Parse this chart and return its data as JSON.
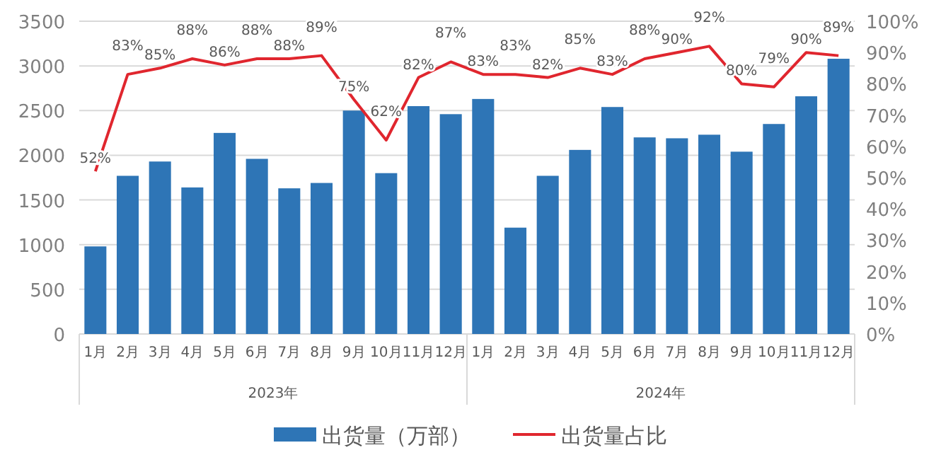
{
  "chart_data": {
    "type": "bar",
    "categories": [
      "1月",
      "2月",
      "3月",
      "4月",
      "5月",
      "6月",
      "7月",
      "8月",
      "9月",
      "10月",
      "11月",
      "12月",
      "1月",
      "2月",
      "3月",
      "4月",
      "5月",
      "6月",
      "7月",
      "8月",
      "9月",
      "10月",
      "11月",
      "12月"
    ],
    "series": [
      {
        "name": "出货量（万部）",
        "color": "#2e75b6",
        "values": [
          980,
          1770,
          1930,
          1640,
          2250,
          1960,
          1630,
          1690,
          2500,
          1800,
          2550,
          2460,
          2630,
          1190,
          1770,
          2060,
          2540,
          2200,
          2190,
          2230,
          2040,
          2350,
          2660,
          3080
        ]
      },
      {
        "name": "出货量占比",
        "type": "line",
        "axis": "y2",
        "color": "#e0262e",
        "values": [
          52,
          83,
          85,
          88,
          86,
          88,
          88,
          89,
          75,
          62,
          82,
          87,
          83,
          83,
          82,
          85,
          83,
          88,
          90,
          92,
          80,
          79,
          90,
          89
        ],
        "value_labels": [
          "52%",
          "83%",
          "85%",
          "88%",
          "86%",
          "88%",
          "88%",
          "89%",
          "75%",
          "62%",
          "82%",
          "87%",
          "83%",
          "83%",
          "82%",
          "85%",
          "83%",
          "88%",
          "90%",
          "92%",
          "80%",
          "79%",
          "90%",
          "89%"
        ]
      }
    ],
    "ylim": [
      0,
      3500
    ],
    "yticks": [
      0,
      500,
      1000,
      1500,
      2000,
      2500,
      3000,
      3500
    ],
    "y2lim": [
      0,
      100
    ],
    "y2ticks": [
      {
        "value": 0,
        "label": "0%"
      },
      {
        "value": 10,
        "label": "10%"
      },
      {
        "value": 20,
        "label": "20%"
      },
      {
        "value": 30,
        "label": "30%"
      },
      {
        "value": 40,
        "label": "40%"
      },
      {
        "value": 50,
        "label": "50%"
      },
      {
        "value": 60,
        "label": "60%"
      },
      {
        "value": 70,
        "label": "70%"
      },
      {
        "value": 80,
        "label": "80%"
      },
      {
        "value": 90,
        "label": "90%"
      },
      {
        "value": 100,
        "label": "100%"
      }
    ],
    "annotations": [
      "2023年",
      "2024年"
    ],
    "grid": "y",
    "legend": "bottom"
  }
}
